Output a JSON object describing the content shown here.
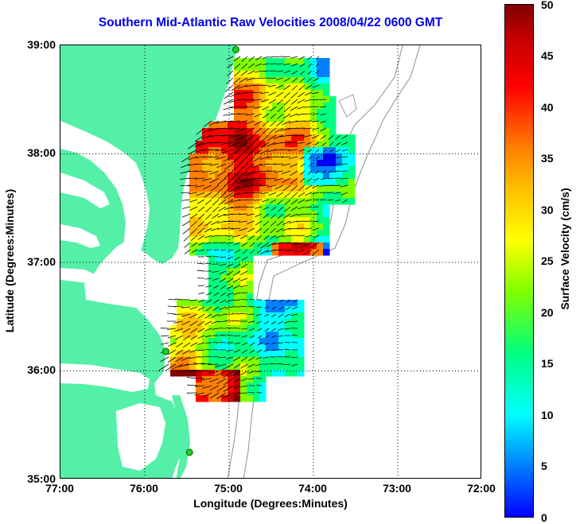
{
  "title": "Southern Mid-Atlantic Raw Velocities 2008/04/22 0600 GMT",
  "axes": {
    "xlabel": "Longitude (Degrees:Minutes)",
    "ylabel": "Latitude (Degrees:Minutes)",
    "x_ticks": [
      "77:00",
      "76:00",
      "75:00",
      "74:00",
      "73:00",
      "72:00"
    ],
    "y_ticks": [
      "39:00",
      "38:00",
      "37:00",
      "36:00",
      "35:00"
    ]
  },
  "colorbar": {
    "label": "Surface Velocity (cm/s)",
    "ticks": [
      "50",
      "45",
      "40",
      "35",
      "30",
      "25",
      "20",
      "15",
      "10",
      "5",
      "0"
    ],
    "range": [
      0,
      50
    ]
  },
  "colors": {
    "land": "#55f0a8",
    "depth_contour": "#a0a0a0",
    "title": "#0000ee",
    "station_marker": "#22cc22"
  },
  "map": {
    "lon_range": [
      -77,
      -72
    ],
    "lat_range": [
      35,
      39
    ],
    "grid": "dotted",
    "stations": [
      {
        "lon": -74.92,
        "lat": 38.96
      },
      {
        "lon": -75.75,
        "lat": 36.18
      },
      {
        "lon": -75.47,
        "lat": 35.25
      }
    ]
  }
}
